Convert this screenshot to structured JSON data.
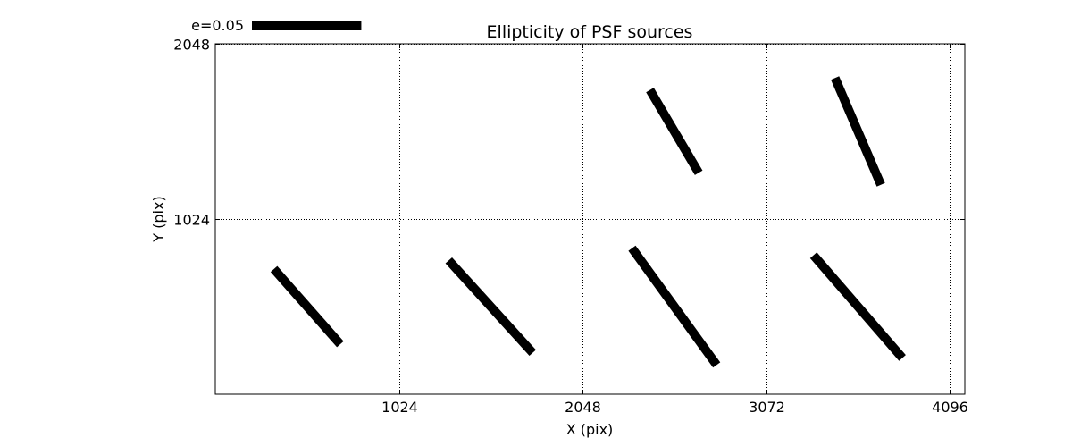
{
  "chart_data": {
    "type": "quiver",
    "title": "Ellipticity of PSF sources",
    "xlabel": "X (pix)",
    "ylabel": "Y (pix)",
    "xlim": [
      0,
      4180
    ],
    "ylim": [
      0,
      2048
    ],
    "xticks": [
      1024,
      2048,
      3072,
      4096
    ],
    "yticks": [
      1024,
      2048
    ],
    "grid": true,
    "grid_style": "dotted",
    "color": "#000000",
    "scale_key": {
      "label": "e=0.05",
      "e": 0.05,
      "length_x": 610
    },
    "sticks": [
      {
        "x": 512,
        "y": 512,
        "x1": 327,
        "y1": 732,
        "x2": 697,
        "y2": 292
      },
      {
        "x": 1536,
        "y": 512,
        "x1": 1302,
        "y1": 782,
        "x2": 1770,
        "y2": 242
      },
      {
        "x": 2560,
        "y": 512,
        "x1": 2324,
        "y1": 853,
        "x2": 2796,
        "y2": 171
      },
      {
        "x": 3584,
        "y": 512,
        "x1": 3336,
        "y1": 812,
        "x2": 3832,
        "y2": 212
      },
      {
        "x": 2560,
        "y": 1536,
        "x1": 2424,
        "y1": 1778,
        "x2": 2696,
        "y2": 1294
      },
      {
        "x": 3584,
        "y": 1536,
        "x1": 3456,
        "y1": 1848,
        "x2": 3712,
        "y2": 1224
      }
    ]
  }
}
